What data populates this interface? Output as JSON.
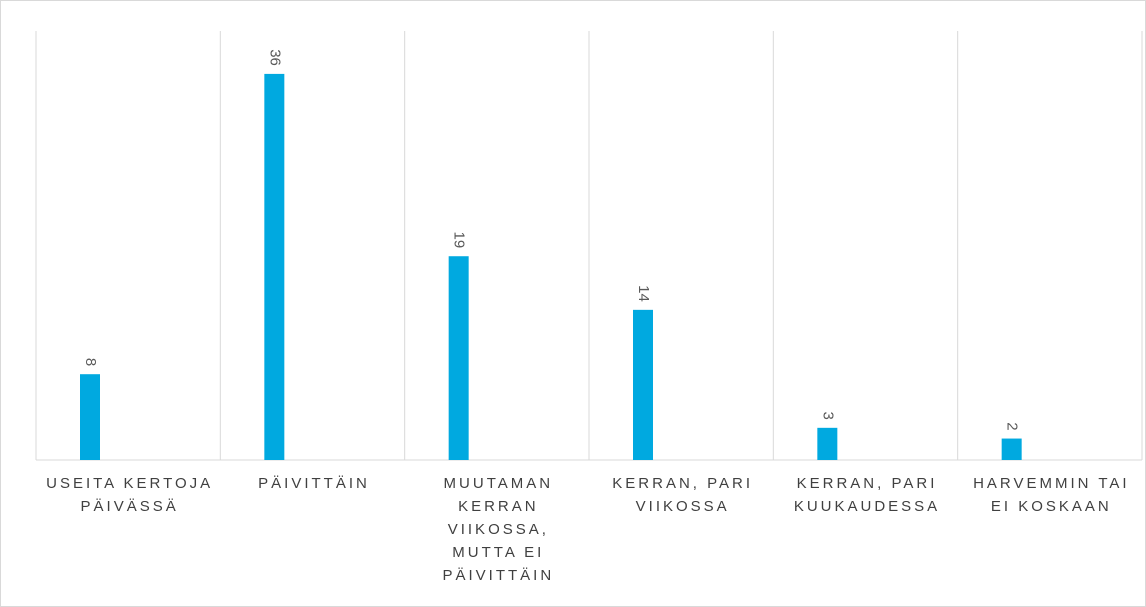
{
  "chart_data": {
    "type": "bar",
    "categories": [
      "USEITA KERTOJA PÄIVÄSSÄ",
      "PÄIVITTÄIN",
      "MUUTAMAN KERRAN VIIKOSSA, MUTTA EI PÄIVITTÄIN",
      "KERRAN, PARI VIIKOSSA",
      "KERRAN, PARI KUUKAUDESSA",
      "HARVEMMIN TAI EI KOSKAAN"
    ],
    "values": [
      8,
      36,
      19,
      14,
      3,
      2
    ],
    "color": "#00a9e0",
    "ylim": [
      0,
      40
    ]
  }
}
